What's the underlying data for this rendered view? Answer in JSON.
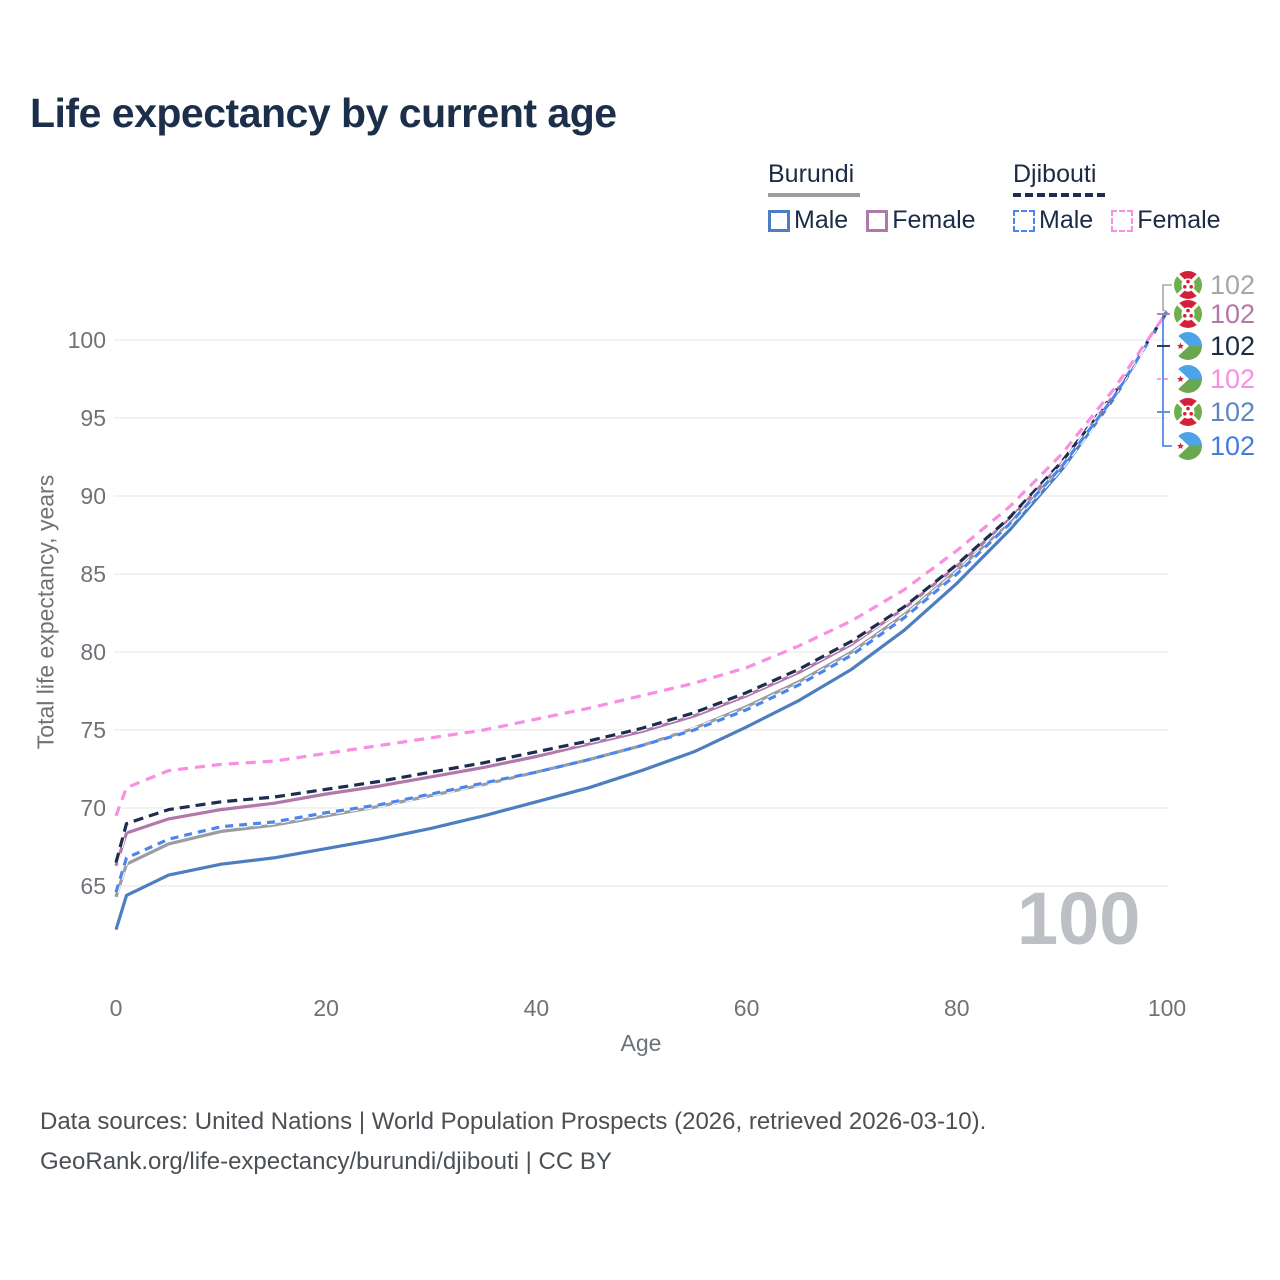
{
  "title": "Life expectancy by current age",
  "legend": {
    "groups": [
      {
        "country": "Burundi",
        "line_style": "solid",
        "all_series": "burundi-all",
        "items": [
          {
            "label": "Male",
            "series": "burundi-male"
          },
          {
            "label": "Female",
            "series": "burundi-female"
          }
        ]
      },
      {
        "country": "Djibouti",
        "line_style": "dashed",
        "all_series": "djibouti-all",
        "items": [
          {
            "label": "Male",
            "series": "djibouti-male"
          },
          {
            "label": "Female",
            "series": "djibouti-female"
          }
        ]
      }
    ]
  },
  "chart_data": {
    "type": "line",
    "title": "Life expectancy by current age",
    "xlabel": "Age",
    "ylabel": "Total life expectancy, years",
    "xlim": [
      0,
      100
    ],
    "x_ticks": [
      0,
      20,
      40,
      60,
      80,
      100
    ],
    "y_ticks": [
      65,
      70,
      75,
      80,
      85,
      90,
      95,
      100
    ],
    "grid": "horizontal-only",
    "age_counter": "100",
    "ages": [
      0,
      1,
      5,
      10,
      15,
      20,
      25,
      30,
      35,
      40,
      45,
      50,
      55,
      60,
      65,
      70,
      75,
      80,
      85,
      90,
      95,
      100
    ],
    "series": [
      {
        "id": "burundi-all",
        "name": "Burundi",
        "sex": "All",
        "color": "#9a9da1",
        "dash": null,
        "values": [
          64.3,
          66.4,
          67.7,
          68.5,
          68.9,
          69.5,
          70.1,
          70.8,
          71.5,
          72.3,
          73.1,
          74.0,
          75.1,
          76.5,
          78.1,
          80.0,
          82.4,
          85.2,
          88.3,
          92.0,
          96.4,
          101.8
        ]
      },
      {
        "id": "burundi-female",
        "name": "Burundi",
        "sex": "Female",
        "color": "#b277ab",
        "dash": null,
        "values": [
          66.3,
          68.4,
          69.3,
          69.9,
          70.3,
          70.9,
          71.4,
          72.0,
          72.6,
          73.3,
          74.1,
          74.9,
          75.9,
          77.2,
          78.7,
          80.5,
          82.8,
          85.5,
          88.5,
          92.1,
          96.5,
          101.8
        ]
      },
      {
        "id": "burundi-male",
        "name": "Burundi",
        "sex": "Male",
        "color": "#4d7ebf",
        "dash": null,
        "values": [
          62.2,
          64.4,
          65.7,
          66.4,
          66.8,
          67.4,
          68.0,
          68.7,
          69.5,
          70.4,
          71.3,
          72.4,
          73.6,
          75.2,
          76.9,
          78.9,
          81.4,
          84.4,
          87.8,
          91.7,
          96.3,
          101.8
        ]
      },
      {
        "id": "djibouti-all",
        "name": "Djibouti",
        "sex": "All",
        "color": "#1e2d4f",
        "dash": "10 6",
        "values": [
          66.5,
          69.0,
          69.9,
          70.4,
          70.7,
          71.2,
          71.7,
          72.3,
          72.9,
          73.6,
          74.3,
          75.1,
          76.1,
          77.4,
          78.9,
          80.7,
          82.9,
          85.6,
          88.6,
          92.2,
          96.6,
          101.8
        ]
      },
      {
        "id": "djibouti-male",
        "name": "Djibouti",
        "sex": "Male",
        "color": "#4a86ee",
        "dash": "8 6",
        "values": [
          64.6,
          66.8,
          68.0,
          68.8,
          69.1,
          69.7,
          70.2,
          70.9,
          71.6,
          72.3,
          73.1,
          74.0,
          75.0,
          76.3,
          77.9,
          79.8,
          82.2,
          85.0,
          88.2,
          91.9,
          96.4,
          101.8
        ]
      },
      {
        "id": "djibouti-female",
        "name": "Djibouti",
        "sex": "Female",
        "color": "#f98fe2",
        "dash": "10 7",
        "values": [
          69.5,
          71.3,
          72.4,
          72.8,
          73.0,
          73.5,
          74.0,
          74.5,
          75.0,
          75.7,
          76.4,
          77.2,
          78.0,
          79.0,
          80.4,
          82.0,
          84.0,
          86.5,
          89.3,
          92.7,
          96.9,
          101.8
        ]
      }
    ],
    "endpoint_labels": [
      {
        "flag": "burundi",
        "value": "102",
        "color": "#a3a7ab"
      },
      {
        "flag": "burundi",
        "value": "102",
        "color": "#b277ab"
      },
      {
        "flag": "djibouti",
        "value": "102",
        "color": "#1b2b45"
      },
      {
        "flag": "djibouti",
        "value": "102",
        "color": "#f98fe2"
      },
      {
        "flag": "burundi",
        "value": "102",
        "color": "#5b87c5"
      },
      {
        "flag": "djibouti",
        "value": "102",
        "color": "#3f7de0"
      }
    ]
  },
  "footer": {
    "line1": "Data sources: United Nations | World Population Prospects (2026, retrieved 2026-03-10).",
    "line2": "GeoRank.org/life-expectancy/burundi/djibouti | CC BY"
  },
  "colors": {
    "title_text": "#1b2f4b",
    "axis_text": "#6e7378",
    "gridline": "#e9eaeb",
    "watermark": "#bcc0c4",
    "footer_text": "#4b5055"
  }
}
